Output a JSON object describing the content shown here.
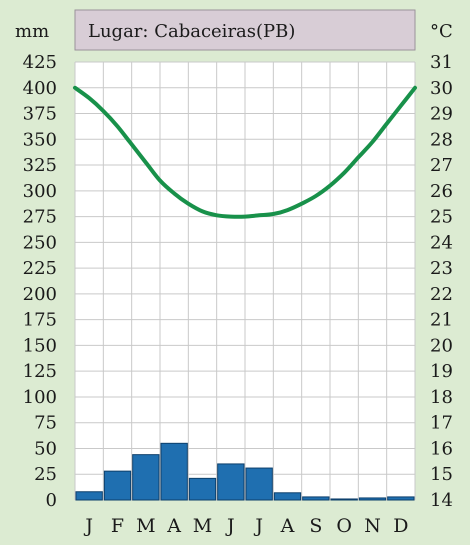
{
  "chart_data": {
    "type": "bar+line",
    "title": "Lugar: Cabaceiras(PB)",
    "left_axis": {
      "unit": "mm",
      "ylim": [
        0,
        425
      ],
      "ticks": [
        "0",
        "25",
        "50",
        "75",
        "100",
        "125",
        "150",
        "175",
        "200",
        "225",
        "250",
        "275",
        "300",
        "325",
        "350",
        "375",
        "400",
        "425"
      ]
    },
    "right_axis": {
      "unit": "°C",
      "ylim": [
        14,
        31
      ],
      "ticks": [
        "14",
        "15",
        "16",
        "17",
        "18",
        "19",
        "20",
        "21",
        "22",
        "23",
        "24",
        "25",
        "26",
        "27",
        "28",
        "29",
        "30",
        "31"
      ]
    },
    "categories": [
      "J",
      "F",
      "M",
      "A",
      "M",
      "J",
      "J",
      "A",
      "S",
      "O",
      "N",
      "D"
    ],
    "series": [
      {
        "kind": "bar",
        "axis": "left",
        "values": [
          8,
          28,
          44,
          55,
          21,
          35,
          31,
          7,
          3,
          1,
          2,
          3
        ]
      },
      {
        "kind": "line",
        "axis": "right",
        "x": [
          0,
          0.5,
          1,
          1.5,
          2,
          2.5,
          3,
          3.5,
          4,
          4.5,
          5,
          5.5,
          6,
          6.5,
          7,
          7.5,
          8,
          8.5,
          9,
          9.5,
          10,
          10.5,
          11,
          11.5,
          12
        ],
        "values": [
          30,
          29.6,
          29.1,
          28.5,
          27.8,
          27.1,
          26.4,
          25.9,
          25.5,
          25.2,
          25.05,
          25.0,
          25.0,
          25.05,
          25.1,
          25.25,
          25.5,
          25.8,
          26.2,
          26.7,
          27.3,
          27.9,
          28.6,
          29.3,
          30
        ]
      }
    ],
    "colors": {
      "bar": "#1f6fb0",
      "bar_stroke": "#0d3f6b",
      "line": "#18914a",
      "plot_bg": "#ffffff",
      "grid": "#c9c9c9",
      "title_bg": "#d8cdd6"
    },
    "grid": true
  }
}
